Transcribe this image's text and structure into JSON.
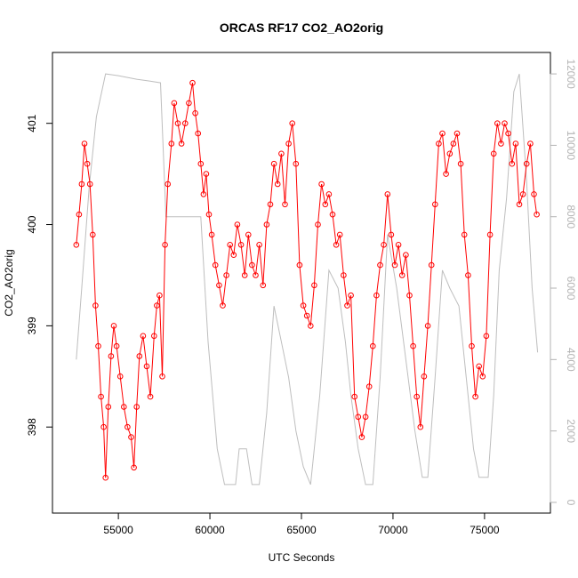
{
  "chart_data": {
    "type": "line",
    "title": "ORCAS RF17 CO2_AO2orig",
    "xlabel": "UTC Seconds",
    "ylabel": "CO2_AO2orig",
    "xlim": [
      51400,
      78600
    ],
    "ylim": [
      397.15,
      401.7
    ],
    "y2lim": [
      -300,
      12600
    ],
    "x_ticks": [
      55000,
      60000,
      65000,
      70000,
      75000
    ],
    "x_tick_labels": [
      "55000",
      "60000",
      "65000",
      "70000",
      "75000"
    ],
    "y_ticks": [
      398,
      399,
      400,
      401
    ],
    "y_tick_labels": [
      "398",
      "399",
      "400",
      "401"
    ],
    "y2_ticks": [
      0,
      2000,
      4000,
      6000,
      8000,
      10000,
      12000
    ],
    "y2_tick_labels": [
      "0",
      "2000",
      "4000",
      "6000",
      "8000",
      "10000",
      "12000"
    ],
    "colors": {
      "series": "#ff0000",
      "altitude": "#bebebe",
      "right_axis": "#b3b3b3"
    },
    "series": [
      {
        "kind": "points-and-lines",
        "values": [
          [
            52700,
            399.8
          ],
          [
            52850,
            400.1
          ],
          [
            53000,
            400.4
          ],
          [
            53150,
            400.8
          ],
          [
            53300,
            400.6
          ],
          [
            53450,
            400.4
          ],
          [
            53600,
            399.9
          ],
          [
            53750,
            399.2
          ],
          [
            53900,
            398.8
          ],
          [
            54050,
            398.3
          ],
          [
            54200,
            398.0
          ],
          [
            54300,
            397.5
          ],
          [
            54450,
            398.2
          ],
          [
            54600,
            398.7
          ],
          [
            54750,
            399.0
          ],
          [
            54900,
            398.8
          ],
          [
            55100,
            398.5
          ],
          [
            55300,
            398.2
          ],
          [
            55500,
            398.0
          ],
          [
            55700,
            397.9
          ],
          [
            55850,
            397.6
          ],
          [
            56000,
            398.2
          ],
          [
            56150,
            398.7
          ],
          [
            56350,
            398.9
          ],
          [
            56550,
            398.6
          ],
          [
            56750,
            398.3
          ],
          [
            56950,
            398.9
          ],
          [
            57100,
            399.2
          ],
          [
            57250,
            399.3
          ],
          [
            57400,
            398.5
          ],
          [
            57550,
            399.8
          ],
          [
            57700,
            400.4
          ],
          [
            57900,
            400.8
          ],
          [
            58050,
            401.2
          ],
          [
            58250,
            401.0
          ],
          [
            58450,
            400.8
          ],
          [
            58650,
            401.0
          ],
          [
            58850,
            401.2
          ],
          [
            59050,
            401.4
          ],
          [
            59200,
            401.1
          ],
          [
            59350,
            400.9
          ],
          [
            59500,
            400.6
          ],
          [
            59650,
            400.3
          ],
          [
            59800,
            400.5
          ],
          [
            59950,
            400.1
          ],
          [
            60100,
            399.9
          ],
          [
            60300,
            399.6
          ],
          [
            60500,
            399.4
          ],
          [
            60700,
            399.2
          ],
          [
            60900,
            399.5
          ],
          [
            61100,
            399.8
          ],
          [
            61300,
            399.7
          ],
          [
            61500,
            400.0
          ],
          [
            61700,
            399.8
          ],
          [
            61900,
            399.5
          ],
          [
            62100,
            399.9
          ],
          [
            62300,
            399.6
          ],
          [
            62500,
            399.5
          ],
          [
            62700,
            399.8
          ],
          [
            62900,
            399.4
          ],
          [
            63100,
            400.0
          ],
          [
            63300,
            400.2
          ],
          [
            63500,
            400.6
          ],
          [
            63700,
            400.4
          ],
          [
            63900,
            400.7
          ],
          [
            64100,
            400.2
          ],
          [
            64300,
            400.8
          ],
          [
            64500,
            401.0
          ],
          [
            64700,
            400.6
          ],
          [
            64900,
            399.6
          ],
          [
            65100,
            399.2
          ],
          [
            65300,
            399.1
          ],
          [
            65500,
            399.0
          ],
          [
            65700,
            399.4
          ],
          [
            65900,
            400.0
          ],
          [
            66100,
            400.4
          ],
          [
            66300,
            400.2
          ],
          [
            66500,
            400.3
          ],
          [
            66700,
            400.1
          ],
          [
            66900,
            399.8
          ],
          [
            67100,
            399.9
          ],
          [
            67300,
            399.5
          ],
          [
            67500,
            399.2
          ],
          [
            67700,
            399.3
          ],
          [
            67900,
            398.3
          ],
          [
            68100,
            398.1
          ],
          [
            68300,
            397.9
          ],
          [
            68500,
            398.1
          ],
          [
            68700,
            398.4
          ],
          [
            68900,
            398.8
          ],
          [
            69100,
            399.3
          ],
          [
            69300,
            399.6
          ],
          [
            69500,
            399.8
          ],
          [
            69700,
            400.3
          ],
          [
            69900,
            399.9
          ],
          [
            70100,
            399.6
          ],
          [
            70300,
            399.8
          ],
          [
            70500,
            399.5
          ],
          [
            70700,
            399.7
          ],
          [
            70900,
            399.3
          ],
          [
            71100,
            398.8
          ],
          [
            71300,
            398.3
          ],
          [
            71500,
            398.0
          ],
          [
            71700,
            398.5
          ],
          [
            71900,
            399.0
          ],
          [
            72100,
            399.6
          ],
          [
            72300,
            400.2
          ],
          [
            72500,
            400.8
          ],
          [
            72700,
            400.9
          ],
          [
            72900,
            400.5
          ],
          [
            73100,
            400.7
          ],
          [
            73300,
            400.8
          ],
          [
            73500,
            400.9
          ],
          [
            73700,
            400.6
          ],
          [
            73900,
            399.9
          ],
          [
            74100,
            399.5
          ],
          [
            74300,
            398.8
          ],
          [
            74500,
            398.3
          ],
          [
            74700,
            398.6
          ],
          [
            74900,
            398.5
          ],
          [
            75100,
            398.9
          ],
          [
            75300,
            399.9
          ],
          [
            75500,
            400.7
          ],
          [
            75700,
            401.0
          ],
          [
            75900,
            400.8
          ],
          [
            76100,
            401.0
          ],
          [
            76300,
            400.9
          ],
          [
            76500,
            400.6
          ],
          [
            76700,
            400.8
          ],
          [
            76900,
            400.2
          ],
          [
            77100,
            400.3
          ],
          [
            77300,
            400.6
          ],
          [
            77500,
            400.8
          ],
          [
            77700,
            400.3
          ],
          [
            77850,
            400.1
          ]
        ]
      },
      {
        "kind": "line",
        "axis": "right",
        "values": [
          [
            52700,
            4000
          ],
          [
            53000,
            6000
          ],
          [
            53400,
            8800
          ],
          [
            53800,
            10800
          ],
          [
            54300,
            12000
          ],
          [
            55000,
            11950
          ],
          [
            56000,
            11850
          ],
          [
            56700,
            11800
          ],
          [
            57300,
            11750
          ],
          [
            57600,
            8000
          ],
          [
            59500,
            8000
          ],
          [
            59900,
            4500
          ],
          [
            60400,
            1500
          ],
          [
            60800,
            500
          ],
          [
            61400,
            500
          ],
          [
            61600,
            1500
          ],
          [
            62000,
            1500
          ],
          [
            62300,
            500
          ],
          [
            62700,
            500
          ],
          [
            63100,
            2500
          ],
          [
            63500,
            5500
          ],
          [
            63900,
            4500
          ],
          [
            64300,
            3500
          ],
          [
            64700,
            2000
          ],
          [
            65100,
            1000
          ],
          [
            65500,
            500
          ],
          [
            66000,
            3000
          ],
          [
            66500,
            6500
          ],
          [
            67000,
            6000
          ],
          [
            67400,
            4500
          ],
          [
            67700,
            3000
          ],
          [
            68100,
            1500
          ],
          [
            68500,
            500
          ],
          [
            68900,
            500
          ],
          [
            69300,
            3500
          ],
          [
            69700,
            7500
          ],
          [
            70200,
            6000
          ],
          [
            70700,
            4000
          ],
          [
            71200,
            2000
          ],
          [
            71600,
            700
          ],
          [
            71900,
            700
          ],
          [
            72300,
            3500
          ],
          [
            72700,
            6500
          ],
          [
            73100,
            6000
          ],
          [
            73600,
            5500
          ],
          [
            74000,
            3500
          ],
          [
            74400,
            1500
          ],
          [
            74700,
            700
          ],
          [
            75200,
            700
          ],
          [
            75500,
            3000
          ],
          [
            75800,
            6500
          ],
          [
            76200,
            8500
          ],
          [
            76600,
            11500
          ],
          [
            76900,
            12000
          ],
          [
            77300,
            9000
          ],
          [
            77600,
            6000
          ],
          [
            77900,
            4200
          ]
        ]
      }
    ]
  }
}
